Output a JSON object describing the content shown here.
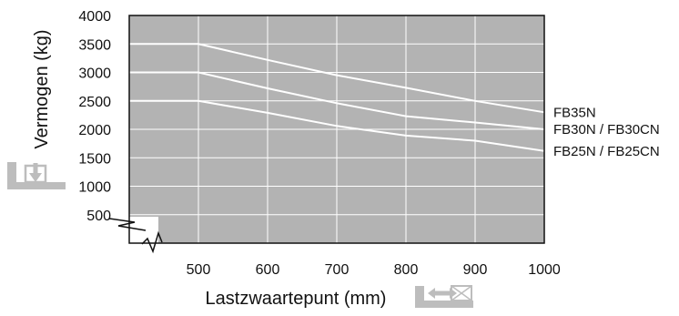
{
  "chart_data": {
    "type": "line",
    "xlabel": "Lastzwaartepunt (mm)",
    "ylabel": "Vermogen (kg)",
    "x_ticks": [
      500,
      600,
      700,
      800,
      900,
      1000
    ],
    "y_ticks": [
      500,
      1000,
      1500,
      2000,
      2500,
      3000,
      3500,
      4000
    ],
    "xlim": [
      400,
      1000
    ],
    "ylim": [
      0,
      4000
    ],
    "grid": true,
    "axis_break": true,
    "series": [
      {
        "name": "FB35N",
        "x": [
          400,
          500,
          600,
          700,
          800,
          900,
          1000
        ],
        "y": [
          3500,
          3500,
          3220,
          2950,
          2730,
          2500,
          2300
        ]
      },
      {
        "name": "FB30N / FB30CN",
        "x": [
          400,
          500,
          600,
          700,
          800,
          900,
          1000
        ],
        "y": [
          3000,
          3000,
          2720,
          2460,
          2230,
          2120,
          2000
        ]
      },
      {
        "name": "FB25N / FB25CN",
        "x": [
          400,
          500,
          600,
          700,
          800,
          900,
          1000
        ],
        "y": [
          2500,
          2500,
          2290,
          2060,
          1890,
          1800,
          1620
        ]
      }
    ]
  },
  "colors": {
    "plot_bg": "#b3b3b3",
    "series_line": "#ffffff",
    "grid": "#ffffff",
    "icon": "#bdbdbd"
  },
  "icons": [
    "load-down-icon",
    "load-center-icon"
  ]
}
